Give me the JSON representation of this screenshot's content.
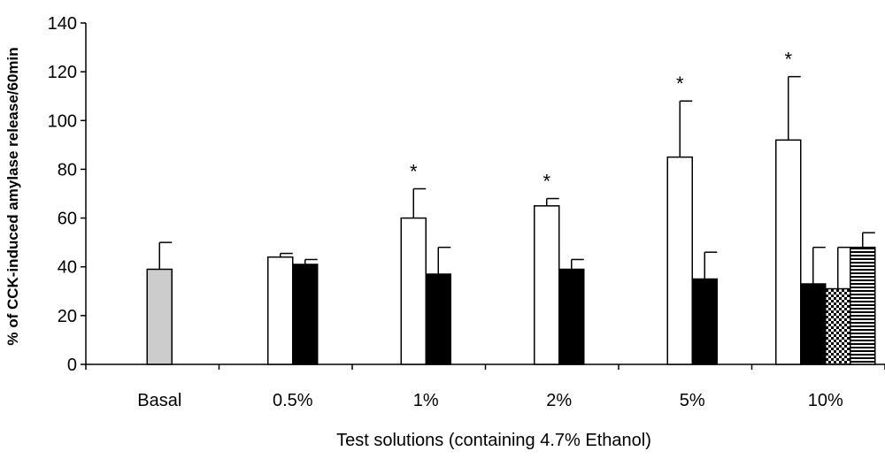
{
  "chart_data": {
    "type": "bar",
    "title": "",
    "xlabel": "Test solutions (containing 4.7% Ethanol)",
    "ylabel": "% of CCK-induced amylase release/60min",
    "ylim": [
      0,
      140
    ],
    "yticks": [
      0,
      20,
      40,
      60,
      80,
      100,
      120,
      140
    ],
    "grid": false,
    "legend": "none",
    "categories": [
      "Basal",
      "0.5%",
      "1%",
      "2%",
      "5%",
      "10%"
    ],
    "series": [
      {
        "fill": "white",
        "values": [
          null,
          44,
          60,
          65,
          85,
          92
        ],
        "errors": [
          null,
          1.5,
          12,
          3,
          23,
          26
        ],
        "significant": [
          false,
          false,
          true,
          true,
          true,
          true
        ]
      },
      {
        "fill": "black",
        "values": [
          null,
          41,
          37,
          39,
          35,
          33
        ],
        "errors": [
          null,
          2,
          11,
          4,
          11,
          15
        ],
        "significant": [
          false,
          false,
          false,
          false,
          false,
          false
        ]
      },
      {
        "fill": "dotted",
        "values": [
          null,
          null,
          null,
          null,
          null,
          31
        ],
        "errors": [
          null,
          null,
          null,
          null,
          null,
          17
        ],
        "significant": [
          false,
          false,
          false,
          false,
          false,
          false
        ]
      },
      {
        "fill": "striped",
        "values": [
          null,
          null,
          null,
          null,
          null,
          48
        ],
        "errors": [
          null,
          null,
          null,
          null,
          null,
          6
        ],
        "significant": [
          false,
          false,
          false,
          false,
          false,
          false
        ]
      },
      {
        "fill": "gray",
        "values": [
          39,
          null,
          null,
          null,
          null,
          null
        ],
        "errors": [
          11,
          null,
          null,
          null,
          null,
          null
        ],
        "significant": [
          false,
          false,
          false,
          false,
          false,
          false
        ]
      }
    ],
    "annotations": [
      {
        "text": "*",
        "meaning": "significant"
      }
    ]
  },
  "colors": {
    "white": "#ffffff",
    "black": "#000000",
    "gray": "#cccccc",
    "axis": "#000000"
  }
}
